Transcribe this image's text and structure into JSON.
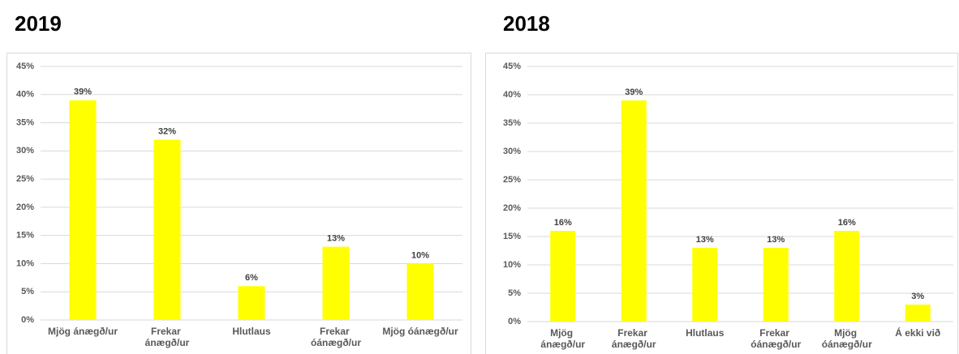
{
  "chart_data": [
    {
      "type": "bar",
      "title": "2019",
      "categories": [
        "Mjög ánægð/ur",
        "Frekar ánægð/ur",
        "Hlutlaus",
        "Frekar óánægð/ur",
        "Mjög óánægð/ur"
      ],
      "values": [
        39,
        32,
        6,
        13,
        10
      ],
      "value_labels": [
        "39%",
        "32%",
        "6%",
        "13%",
        "10%"
      ],
      "color": "#ffff00",
      "ylim": [
        0,
        45
      ],
      "yticks": [
        {
          "value": 0,
          "label": "0%"
        },
        {
          "value": 5,
          "label": "5%"
        },
        {
          "value": 10,
          "label": "10%"
        },
        {
          "value": 15,
          "label": "15%"
        },
        {
          "value": 20,
          "label": "20%"
        },
        {
          "value": 25,
          "label": "25%"
        },
        {
          "value": 30,
          "label": "30%"
        },
        {
          "value": 35,
          "label": "35%"
        },
        {
          "value": 40,
          "label": "40%"
        },
        {
          "value": 45,
          "label": "45%"
        }
      ],
      "grid": true
    },
    {
      "type": "bar",
      "title": "2018",
      "categories": [
        "Mjög ánægð/ur",
        "Frekar ánægð/ur",
        "Hlutlaus",
        "Frekar óánægð/ur",
        "Mjög óánægð/ur",
        "Á ekki við"
      ],
      "values": [
        16,
        39,
        13,
        13,
        16,
        3
      ],
      "value_labels": [
        "16%",
        "39%",
        "13%",
        "13%",
        "16%",
        "3%"
      ],
      "color": "#ffff00",
      "ylim": [
        0,
        45
      ],
      "yticks": [
        {
          "value": 0,
          "label": "0%"
        },
        {
          "value": 5,
          "label": "5%"
        },
        {
          "value": 10,
          "label": "10%"
        },
        {
          "value": 15,
          "label": "15%"
        },
        {
          "value": 20,
          "label": "20%"
        },
        {
          "value": 25,
          "label": "25%"
        },
        {
          "value": 30,
          "label": "30%"
        },
        {
          "value": 35,
          "label": "35%"
        },
        {
          "value": 40,
          "label": "40%"
        },
        {
          "value": 45,
          "label": "45%"
        }
      ],
      "grid": true
    }
  ]
}
